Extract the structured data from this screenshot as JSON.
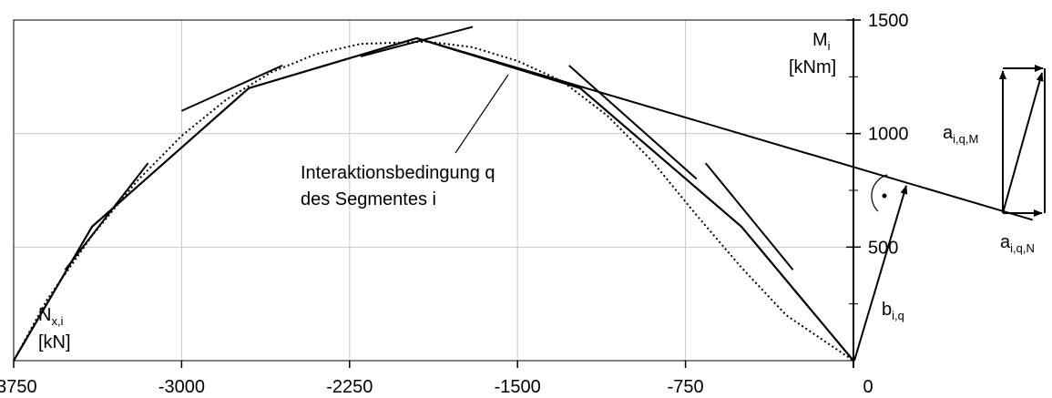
{
  "chart_data": {
    "type": "line",
    "title": "",
    "x_axis": {
      "label_main": "N",
      "label_sub": "x,i",
      "label_unit": "[kN]",
      "range": [
        -3750,
        0
      ],
      "ticks": [
        -3750,
        -3000,
        -2250,
        -1500,
        -750,
        0
      ],
      "tick_labels": [
        "-3750",
        "-3000",
        "-2250",
        "-1500",
        "-750",
        "0"
      ]
    },
    "y_axis": {
      "label_main": "M",
      "label_sub": "i",
      "label_unit": "[kNm]",
      "range": [
        0,
        1500
      ],
      "ticks": [
        500,
        1000,
        1500
      ],
      "tick_labels": [
        "500",
        "1000",
        "1500"
      ]
    },
    "grid": true,
    "series": [
      {
        "style": "dotted",
        "points": [
          [
            -3750,
            0
          ],
          [
            -3600,
            270
          ],
          [
            -3400,
            550
          ],
          [
            -3200,
            790
          ],
          [
            -3000,
            990
          ],
          [
            -2800,
            1150
          ],
          [
            -2600,
            1270
          ],
          [
            -2400,
            1350
          ],
          [
            -2200,
            1395
          ],
          [
            -1900,
            1405
          ],
          [
            -1700,
            1380
          ],
          [
            -1500,
            1320
          ],
          [
            -1300,
            1230
          ],
          [
            -1100,
            1080
          ],
          [
            -900,
            880
          ],
          [
            -700,
            640
          ],
          [
            -500,
            410
          ],
          [
            -300,
            200
          ],
          [
            0,
            0
          ]
        ]
      },
      {
        "style": "solid",
        "points": [
          [
            -3750,
            0
          ],
          [
            -3400,
            590
          ],
          [
            -2700,
            1200
          ],
          [
            -1950,
            1420
          ],
          [
            -1220,
            1200
          ],
          [
            -500,
            590
          ],
          [
            0,
            0
          ]
        ]
      }
    ],
    "tangent_segments": [
      [
        [
          -3520,
          400
        ],
        [
          -3150,
          870
        ]
      ],
      [
        [
          -3000,
          1100
        ],
        [
          -2550,
          1300
        ]
      ],
      [
        [
          -2200,
          1340
        ],
        [
          -1700,
          1470
        ]
      ],
      [
        [
          -1270,
          1300
        ],
        [
          -700,
          800
        ]
      ],
      [
        [
          -660,
          870
        ],
        [
          -270,
          400
        ]
      ]
    ],
    "extended_line": [
      [
        -1950,
        1420
      ],
      [
        800,
        620
      ]
    ],
    "annotations": {
      "interaction_line1": "Interaktionsbedingung q",
      "interaction_line2": "des Segmentes i",
      "a_m_main": "a",
      "a_m_sub": "i,q,M",
      "a_n_main": "a",
      "a_n_sub": "i,q,N",
      "b_main": "b",
      "b_sub": "i,q"
    },
    "colors": {
      "line": "#000000",
      "grid": "#c8c8c8"
    }
  }
}
